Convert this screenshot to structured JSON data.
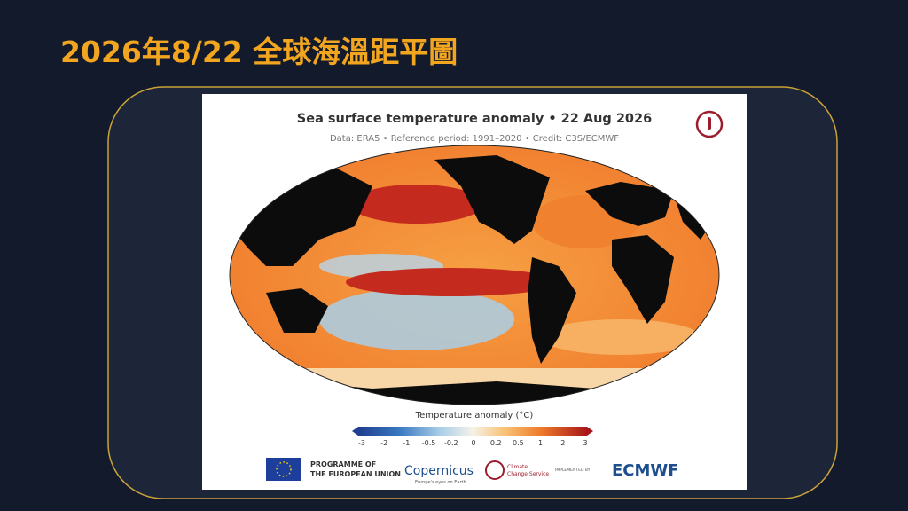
{
  "slide": {
    "title": "2026年8/22 全球海溫距平圖"
  },
  "figure": {
    "title": "Sea surface temperature anomaly • 22 Aug 2026",
    "subtitle": "Data: ERA5 • Reference period: 1991–2020 • Credit: C3S/ECMWF",
    "legend": {
      "title": "Temperature anomaly (°C)",
      "ticks": [
        "-3",
        "-2",
        "-1",
        "-0.5",
        "-0.2",
        "0",
        "0.2",
        "0.5",
        "1",
        "2",
        "3"
      ]
    },
    "logos": {
      "eu": [
        "PROGRAMME OF",
        "THE EUROPEAN UNION"
      ],
      "copernicus": [
        "Copernicus",
        "Europe's eyes on Earth"
      ],
      "c3s": [
        "Climate",
        "Change Service"
      ],
      "ecmwf": [
        "IMPLEMENTED BY",
        "ECMWF"
      ]
    }
  }
}
